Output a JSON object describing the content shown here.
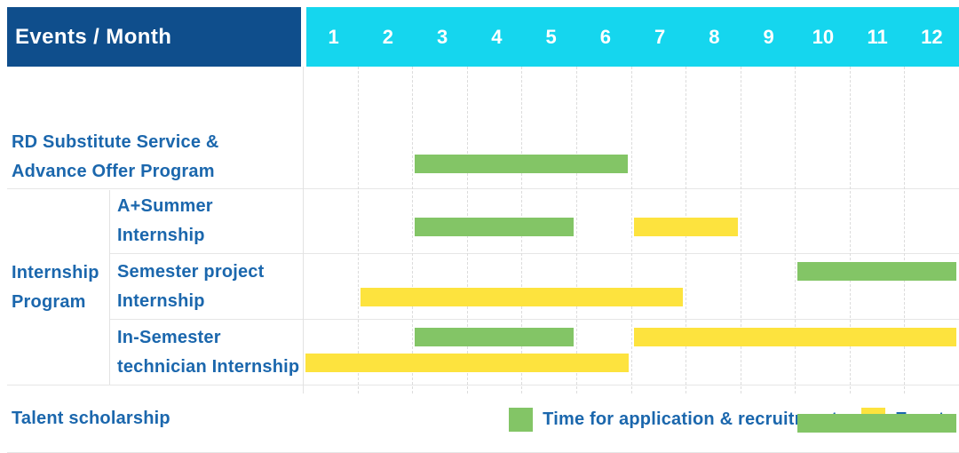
{
  "colors": {
    "navy": "#0f4e8c",
    "cyan": "#15d6ee",
    "green": "#83c566",
    "yellow": "#fde33e",
    "label_text": "#1b67ad",
    "grid_solid": "#e2e2e2",
    "grid_dashed": "#dcdcdc"
  },
  "chart_data": {
    "type": "bar",
    "subtype": "gantt-schedule",
    "corner_label": "Events / Month",
    "x_axis": {
      "unit": "Month",
      "range": [
        1,
        12
      ],
      "ticks": [
        "1",
        "2",
        "3",
        "4",
        "5",
        "6",
        "7",
        "8",
        "9",
        "10",
        "11",
        "12"
      ]
    },
    "legend": [
      {
        "series": "Time for application & recruitment",
        "color": "green"
      },
      {
        "series": "Events",
        "color": "yellow"
      }
    ],
    "groups": [
      {
        "label": "Internship Program",
        "label_lines": [
          "Internship",
          "Program"
        ],
        "row_start": 1,
        "row_end": 3
      }
    ],
    "rows": [
      {
        "label": "RD Substitute Service & Advance Offer Program",
        "label_lines": [
          "RD Substitute Service &",
          "Advance Offer Program"
        ],
        "group": null,
        "bars": [
          {
            "series": "Time for application & recruitment",
            "color": "green",
            "start_month": 3,
            "end_month": 6,
            "lane": "single"
          }
        ]
      },
      {
        "label": "A+Summer Internship",
        "label_lines": [
          "A+Summer",
          "Internship"
        ],
        "group": "Internship Program",
        "bars": [
          {
            "series": "Time for application & recruitment",
            "color": "green",
            "start_month": 3,
            "end_month": 5,
            "lane": "single"
          },
          {
            "series": "Events",
            "color": "yellow",
            "start_month": 7,
            "end_month": 8,
            "lane": "single"
          }
        ]
      },
      {
        "label": "Semester project Internship",
        "label_lines": [
          "Semester project",
          "Internship"
        ],
        "group": "Internship Program",
        "bars": [
          {
            "series": "Time for application & recruitment",
            "color": "green",
            "start_month": 10,
            "end_month": 12,
            "lane": "top"
          },
          {
            "series": "Events",
            "color": "yellow",
            "start_month": 2,
            "end_month": 7,
            "lane": "bottom"
          }
        ]
      },
      {
        "label": "In-Semester technician Internship",
        "label_lines": [
          "In-Semester",
          "technician Internship"
        ],
        "group": "Internship Program",
        "bars": [
          {
            "series": "Time for application & recruitment",
            "color": "green",
            "start_month": 3,
            "end_month": 5,
            "lane": "top"
          },
          {
            "series": "Events",
            "color": "yellow",
            "start_month": 7,
            "end_month": 12,
            "lane": "top"
          },
          {
            "series": "Events",
            "color": "yellow",
            "start_month": 1,
            "end_month": 6,
            "lane": "bottom"
          }
        ]
      },
      {
        "label": "Talent scholarship",
        "label_lines": [
          "Talent scholarship"
        ],
        "group": null,
        "bars": [
          {
            "series": "Time for application & recruitment",
            "color": "green",
            "start_month": 10,
            "end_month": 12,
            "lane": "single"
          }
        ]
      }
    ]
  }
}
